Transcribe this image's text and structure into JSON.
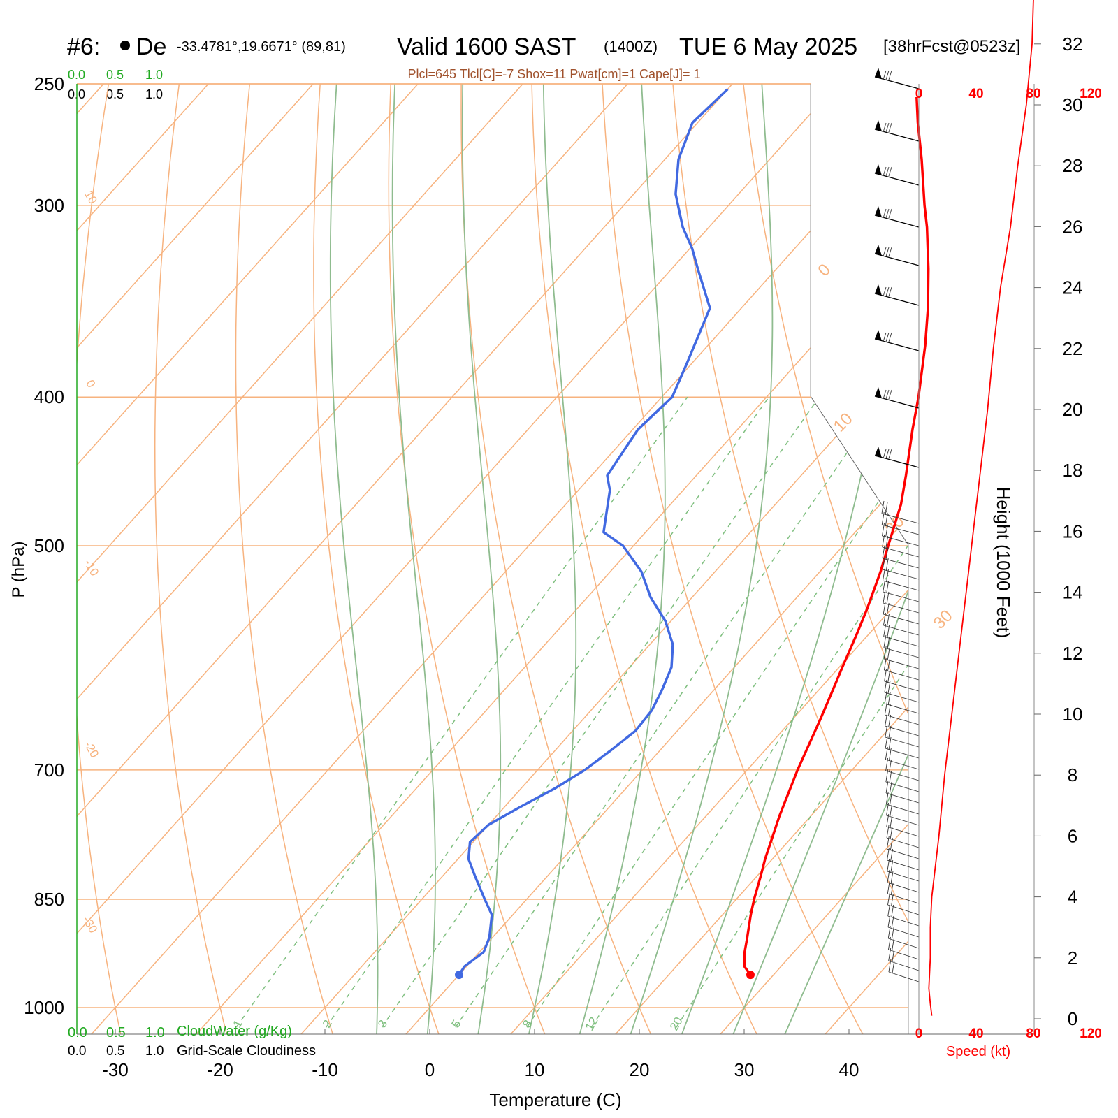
{
  "header": {
    "station_id": "#6:",
    "station_name": "De",
    "coords": "-33.4781°,19.6671° (89,81)",
    "valid_label": "Valid 1600 SAST",
    "zulu": "(1400Z)",
    "date": "TUE 6 May 2025",
    "forecast": "[38hrFcst@0523z]",
    "indices": "Plcl=645 Tlcl[C]=-7 Shox=11 Pwat[cm]=1 Cape[J]= 1"
  },
  "axes": {
    "xlabel": "Temperature (C)",
    "ylabel": "P (hPa)",
    "height_label": "Height (1000 Feet)",
    "speed_label": "Speed (kt)",
    "cloudwater_label": "CloudWater (g/Kg)",
    "cloudiness_label": "Grid-Scale Cloudiness"
  },
  "colors": {
    "temperature": "#ff0000",
    "dewpoint": "#4169e1",
    "isotherm": "#f7b37f",
    "dry_adiabat": "#f7b37f",
    "moist_adiabat": "#8fbc8f",
    "mixing_ratio": "#7fbf7f",
    "speed_line": "#ff0000",
    "cloud_scale_green": "#22aa22",
    "indices_text": "#a0522d"
  },
  "chart_data": {
    "type": "line",
    "x_axis": {
      "ticks": [
        -30,
        -20,
        -10,
        0,
        10,
        20,
        30,
        40
      ],
      "range": [
        -33,
        46
      ]
    },
    "y_axis": {
      "scale": "log",
      "ticks": [
        250,
        300,
        400,
        500,
        700,
        850,
        1000
      ],
      "range": [
        250,
        1030
      ]
    },
    "height_axis": {
      "ticks": [
        0,
        2,
        4,
        6,
        8,
        10,
        12,
        14,
        16,
        18,
        20,
        22,
        24,
        26,
        28,
        30,
        32
      ],
      "unit": "1000 ft"
    },
    "speed_axis": {
      "ticks": [
        "0",
        "40",
        "80",
        "120"
      ],
      "unit": "kt"
    },
    "cloud_scales": {
      "cloudwater": [
        "0.0",
        "0.5",
        "1.0"
      ],
      "cloudiness": [
        "0.0",
        "0.5",
        "1.0"
      ]
    },
    "isotherm_labels": [
      "0",
      "10",
      "20",
      "30"
    ],
    "dry_adiabat_labels": [
      "10",
      "0",
      "-10",
      "-20",
      "-30"
    ],
    "mixing_ratio_labels": [
      "1",
      "2",
      "3",
      "5",
      "8",
      "12",
      "20"
    ],
    "series": [
      {
        "name": "Temperature",
        "points": [
          [
            952,
            27.8
          ],
          [
            940,
            26.5
          ],
          [
            920,
            25.3
          ],
          [
            900,
            24.3
          ],
          [
            870,
            22.7
          ],
          [
            850,
            21.7
          ],
          [
            820,
            20.3
          ],
          [
            800,
            19.3
          ],
          [
            750,
            17.0
          ],
          [
            700,
            14.8
          ],
          [
            650,
            12.7
          ],
          [
            620,
            11.3
          ],
          [
            600,
            10.3
          ],
          [
            570,
            8.8
          ],
          [
            550,
            7.7
          ],
          [
            520,
            5.8
          ],
          [
            500,
            4.3
          ],
          [
            470,
            2.0
          ],
          [
            450,
            0.0
          ],
          [
            420,
            -3.3
          ],
          [
            400,
            -5.5
          ],
          [
            370,
            -9.3
          ],
          [
            350,
            -12.2
          ],
          [
            330,
            -15.5
          ],
          [
            310,
            -19.2
          ],
          [
            300,
            -21.3
          ],
          [
            280,
            -25.5
          ],
          [
            265,
            -29.0
          ],
          [
            255,
            -31.3
          ]
        ]
      },
      {
        "name": "Dewpoint",
        "points": [
          [
            952,
            0.0
          ],
          [
            940,
            -0.2
          ],
          [
            920,
            0.4
          ],
          [
            900,
            -0.3
          ],
          [
            870,
            -2.0
          ],
          [
            850,
            -4.0
          ],
          [
            820,
            -7.0
          ],
          [
            800,
            -9.0
          ],
          [
            780,
            -10.3
          ],
          [
            760,
            -10.0
          ],
          [
            740,
            -8.5
          ],
          [
            720,
            -6.8
          ],
          [
            700,
            -5.5
          ],
          [
            680,
            -4.7
          ],
          [
            660,
            -4.0
          ],
          [
            640,
            -4.2
          ],
          [
            620,
            -5.0
          ],
          [
            600,
            -6.0
          ],
          [
            580,
            -7.8
          ],
          [
            560,
            -10.5
          ],
          [
            540,
            -14.0
          ],
          [
            520,
            -17.0
          ],
          [
            500,
            -21.0
          ],
          [
            490,
            -24.0
          ],
          [
            460,
            -27.0
          ],
          [
            450,
            -28.5
          ],
          [
            420,
            -29.5
          ],
          [
            400,
            -29.0
          ],
          [
            380,
            -30.5
          ],
          [
            350,
            -33.0
          ],
          [
            330,
            -37.5
          ],
          [
            320,
            -39.8
          ],
          [
            310,
            -42.5
          ],
          [
            295,
            -46.0
          ],
          [
            280,
            -48.7
          ],
          [
            265,
            -50.5
          ],
          [
            252,
            -50.0
          ]
        ]
      }
    ],
    "wind_speed_profile": [
      [
        0.1,
        9
      ],
      [
        0.5,
        8
      ],
      [
        1.0,
        7
      ],
      [
        2.0,
        8
      ],
      [
        3.0,
        8
      ],
      [
        4.0,
        9
      ],
      [
        6.0,
        14
      ],
      [
        8.0,
        18
      ],
      [
        10.0,
        23
      ],
      [
        12.0,
        28
      ],
      [
        14.0,
        33
      ],
      [
        16.0,
        38
      ],
      [
        18.0,
        43
      ],
      [
        20.0,
        48
      ],
      [
        22.0,
        52
      ],
      [
        24.0,
        57
      ],
      [
        26.0,
        64
      ],
      [
        28.0,
        69
      ],
      [
        30.0,
        75
      ],
      [
        32.0,
        79
      ],
      [
        33.5,
        80
      ]
    ]
  }
}
